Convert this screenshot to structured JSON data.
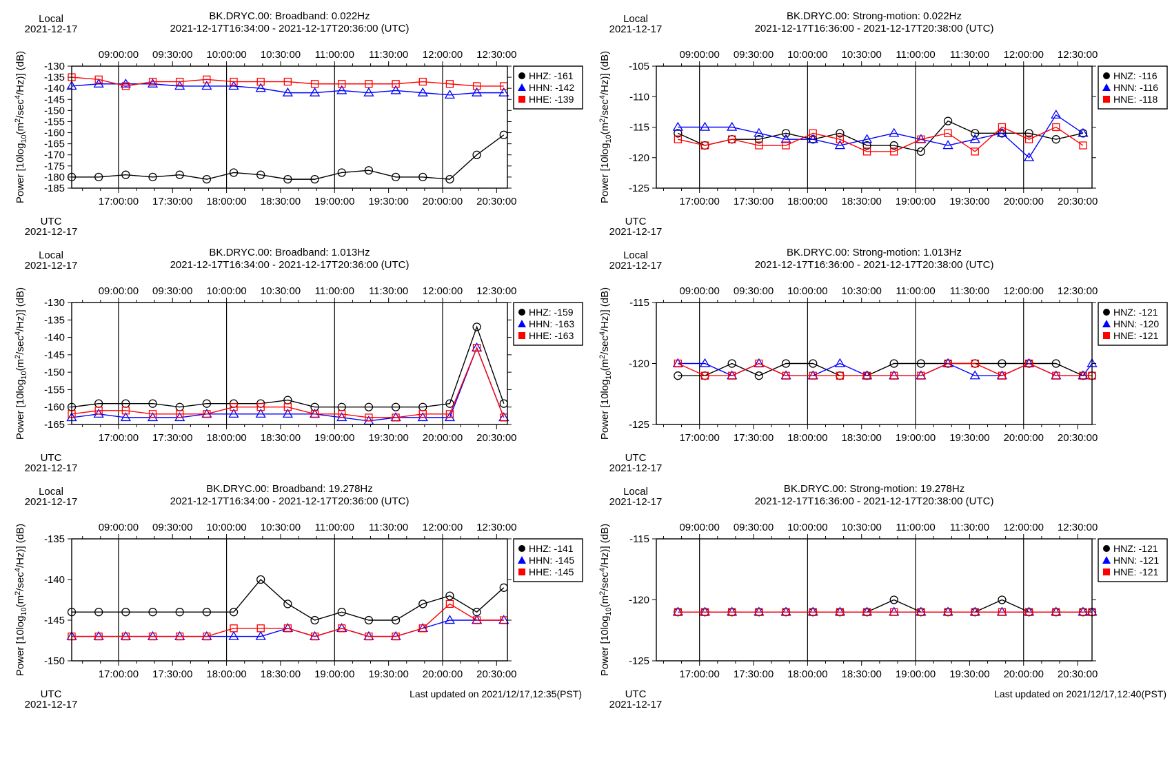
{
  "page": {
    "background": "#ffffff"
  },
  "style": {
    "series_colors": {
      "Z": "#000000",
      "N": "#0000ff",
      "E": "#ff0000"
    },
    "series_markers": {
      "Z": "circle",
      "N": "triangle",
      "E": "square"
    }
  },
  "chart_data": [
    {
      "type": "line",
      "title": "BK.DRYC.00: Broadband: 0.022Hz",
      "subtitle": "2021-12-17T16:34:00 - 2021-12-17T20:36:00 (UTC)",
      "local_label": "Local",
      "local_date": "2021-12-17",
      "utc_label": "UTC",
      "utc_date": "2021-12-17",
      "ylabel": "Power [10log10(m2/sec4/Hz)] (dB)",
      "ylim": [
        -185,
        -130
      ],
      "yticks": [
        -185,
        -180,
        -175,
        -170,
        -165,
        -160,
        -155,
        -150,
        -145,
        -140,
        -135,
        -130
      ],
      "xlim": [
        "16:34",
        "20:36"
      ],
      "xticks_utc": [
        "17:00:00",
        "17:30:00",
        "18:00:00",
        "18:30:00",
        "19:00:00",
        "19:30:00",
        "20:00:00",
        "20:30:00"
      ],
      "xticks_local": [
        "09:00:00",
        "09:30:00",
        "10:00:00",
        "10:30:00",
        "11:00:00",
        "11:30:00",
        "12:00:00",
        "12:30:00"
      ],
      "grid": "vertical lines at every hour",
      "legend_position": "top-right, outside plot",
      "x": [
        "16:34",
        "16:49",
        "17:04",
        "17:19",
        "17:34",
        "17:49",
        "18:04",
        "18:19",
        "18:34",
        "18:49",
        "19:04",
        "19:19",
        "19:34",
        "19:49",
        "20:04",
        "20:19",
        "20:34"
      ],
      "series": [
        {
          "name": "HHZ",
          "legend": "HHZ: -161",
          "color_key": "Z",
          "values": [
            -180,
            -180,
            -179,
            -180,
            -179,
            -181,
            -178,
            -179,
            -181,
            -181,
            -178,
            -177,
            -180,
            -180,
            -181,
            -170,
            -161
          ]
        },
        {
          "name": "HHN",
          "legend": "HHN: -142",
          "color_key": "N",
          "values": [
            -139,
            -138,
            -138,
            -138,
            -139,
            -139,
            -139,
            -140,
            -142,
            -142,
            -141,
            -142,
            -141,
            -142,
            -143,
            -142,
            -142
          ]
        },
        {
          "name": "HHE",
          "legend": "HHE: -139",
          "color_key": "E",
          "values": [
            -135,
            -136,
            -139,
            -137,
            -137,
            -136,
            -137,
            -137,
            -137,
            -138,
            -138,
            -138,
            -138,
            -137,
            -138,
            -139,
            -139
          ]
        }
      ]
    },
    {
      "type": "line",
      "title": "BK.DRYC.00: Strong-motion: 0.022Hz",
      "subtitle": "2021-12-17T16:36:00 - 2021-12-17T20:38:00 (UTC)",
      "local_label": "Local",
      "local_date": "2021-12-17",
      "utc_label": "UTC",
      "utc_date": "2021-12-17",
      "ylabel": "Power [10log10(m2/sec4/Hz)] (dB)",
      "ylim": [
        -125,
        -105
      ],
      "yticks": [
        -125,
        -120,
        -115,
        -110,
        -105
      ],
      "xlim": [
        "16:36",
        "20:38"
      ],
      "xticks_utc": [
        "17:00:00",
        "17:30:00",
        "18:00:00",
        "18:30:00",
        "19:00:00",
        "19:30:00",
        "20:00:00",
        "20:30:00"
      ],
      "xticks_local": [
        "09:00:00",
        "09:30:00",
        "10:00:00",
        "10:30:00",
        "11:00:00",
        "11:30:00",
        "12:00:00",
        "12:30:00"
      ],
      "grid": "vertical lines at every hour",
      "legend_position": "top-right, outside plot",
      "x": [
        "16:48",
        "17:03",
        "17:18",
        "17:33",
        "17:48",
        "18:03",
        "18:18",
        "18:33",
        "18:48",
        "19:03",
        "19:18",
        "19:33",
        "19:48",
        "20:03",
        "20:18",
        "20:33"
      ],
      "series": [
        {
          "name": "HNZ",
          "legend": "HNZ: -116",
          "color_key": "Z",
          "values": [
            -116,
            -118,
            -117,
            -117,
            -116,
            -117,
            -116,
            -118,
            -118,
            -119,
            -114,
            -116,
            -116,
            -116,
            -117,
            -116
          ]
        },
        {
          "name": "HNN",
          "legend": "HNN: -116",
          "color_key": "N",
          "values": [
            -115,
            -115,
            -115,
            -116,
            -117,
            -117,
            -118,
            -117,
            -116,
            -117,
            -118,
            -117,
            -116,
            -120,
            -113,
            -116
          ]
        },
        {
          "name": "HNE",
          "legend": "HNE: -118",
          "color_key": "E",
          "values": [
            -117,
            -118,
            -117,
            -118,
            -118,
            -116,
            -117,
            -119,
            -119,
            -117,
            -116,
            -119,
            -115,
            -117,
            -115,
            -118
          ]
        }
      ]
    },
    {
      "type": "line",
      "title": "BK.DRYC.00: Broadband: 1.013Hz",
      "subtitle": "2021-12-17T16:34:00 - 2021-12-17T20:36:00 (UTC)",
      "local_label": "Local",
      "local_date": "2021-12-17",
      "utc_label": "UTC",
      "utc_date": "2021-12-17",
      "ylabel": "Power [10log10(m2/sec4/Hz)] (dB)",
      "ylim": [
        -165,
        -130
      ],
      "yticks": [
        -165,
        -160,
        -155,
        -150,
        -145,
        -140,
        -135,
        -130
      ],
      "xlim": [
        "16:34",
        "20:36"
      ],
      "xticks_utc": [
        "17:00:00",
        "17:30:00",
        "18:00:00",
        "18:30:00",
        "19:00:00",
        "19:30:00",
        "20:00:00",
        "20:30:00"
      ],
      "xticks_local": [
        "09:00:00",
        "09:30:00",
        "10:00:00",
        "10:30:00",
        "11:00:00",
        "11:30:00",
        "12:00:00",
        "12:30:00"
      ],
      "grid": "vertical lines at every hour",
      "legend_position": "top-right, outside plot",
      "x": [
        "16:34",
        "16:49",
        "17:04",
        "17:19",
        "17:34",
        "17:49",
        "18:04",
        "18:19",
        "18:34",
        "18:49",
        "19:04",
        "19:19",
        "19:34",
        "19:49",
        "20:04",
        "20:19",
        "20:34"
      ],
      "series": [
        {
          "name": "HHZ",
          "legend": "HHZ: -159",
          "color_key": "Z",
          "values": [
            -160,
            -159,
            -159,
            -159,
            -160,
            -159,
            -159,
            -159,
            -158,
            -160,
            -160,
            -160,
            -160,
            -160,
            -159,
            -137,
            -159
          ]
        },
        {
          "name": "HHN",
          "legend": "HHN: -163",
          "color_key": "N",
          "values": [
            -163,
            -162,
            -163,
            -163,
            -163,
            -162,
            -162,
            -162,
            -162,
            -162,
            -163,
            -164,
            -163,
            -163,
            -163,
            -143,
            -163
          ]
        },
        {
          "name": "HHE",
          "legend": "HHE: -163",
          "color_key": "E",
          "values": [
            -162,
            -161,
            -161,
            -162,
            -162,
            -162,
            -160,
            -160,
            -160,
            -162,
            -162,
            -163,
            -163,
            -162,
            -162,
            -143,
            -163
          ]
        }
      ]
    },
    {
      "type": "line",
      "title": "BK.DRYC.00: Strong-motion: 1.013Hz",
      "subtitle": "2021-12-17T16:36:00 - 2021-12-17T20:38:00 (UTC)",
      "local_label": "Local",
      "local_date": "2021-12-17",
      "utc_label": "UTC",
      "utc_date": "2021-12-17",
      "ylabel": "Power [10log10(m2/sec4/Hz)] (dB)",
      "ylim": [
        -125,
        -115
      ],
      "yticks": [
        -125,
        -120,
        -115
      ],
      "xlim": [
        "16:36",
        "20:38"
      ],
      "xticks_utc": [
        "17:00:00",
        "17:30:00",
        "18:00:00",
        "18:30:00",
        "19:00:00",
        "19:30:00",
        "20:00:00",
        "20:30:00"
      ],
      "xticks_local": [
        "09:00:00",
        "09:30:00",
        "10:00:00",
        "10:30:00",
        "11:00:00",
        "11:30:00",
        "12:00:00",
        "12:30:00"
      ],
      "grid": "vertical lines at every hour",
      "legend_position": "top-right, outside plot",
      "x": [
        "16:48",
        "17:03",
        "17:18",
        "17:33",
        "17:48",
        "18:03",
        "18:18",
        "18:33",
        "18:48",
        "19:03",
        "19:18",
        "19:33",
        "19:48",
        "20:03",
        "20:18",
        "20:33",
        "20:38"
      ],
      "series": [
        {
          "name": "HNZ",
          "legend": "HNZ: -121",
          "color_key": "Z",
          "values": [
            -121,
            -121,
            -120,
            -121,
            -120,
            -120,
            -121,
            -121,
            -120,
            -120,
            -120,
            -120,
            -120,
            -120,
            -120,
            -121,
            -121
          ]
        },
        {
          "name": "HNN",
          "legend": "HNN: -120",
          "color_key": "N",
          "values": [
            -120,
            -120,
            -121,
            -120,
            -121,
            -121,
            -120,
            -121,
            -121,
            -121,
            -120,
            -121,
            -121,
            -120,
            -121,
            -121,
            -120
          ]
        },
        {
          "name": "HNE",
          "legend": "HNE: -121",
          "color_key": "E",
          "values": [
            -120,
            -121,
            -121,
            -120,
            -121,
            -121,
            -121,
            -121,
            -121,
            -121,
            -120,
            -120,
            -121,
            -120,
            -121,
            -121,
            -121
          ]
        }
      ]
    },
    {
      "type": "line",
      "title": "BK.DRYC.00: Broadband: 19.278Hz",
      "subtitle": "2021-12-17T16:34:00 - 2021-12-17T20:36:00 (UTC)",
      "local_label": "Local",
      "local_date": "2021-12-17",
      "utc_label": "UTC",
      "utc_date": "2021-12-17",
      "ylabel": "Power [10log10(m2/sec4/Hz)] (dB)",
      "ylim": [
        -150,
        -135
      ],
      "yticks": [
        -150,
        -145,
        -140,
        -135
      ],
      "xlim": [
        "16:34",
        "20:36"
      ],
      "xticks_utc": [
        "17:00:00",
        "17:30:00",
        "18:00:00",
        "18:30:00",
        "19:00:00",
        "19:30:00",
        "20:00:00",
        "20:30:00"
      ],
      "xticks_local": [
        "09:00:00",
        "09:30:00",
        "10:00:00",
        "10:30:00",
        "11:00:00",
        "11:30:00",
        "12:00:00",
        "12:30:00"
      ],
      "grid": "vertical lines at every hour",
      "legend_position": "top-right, outside plot",
      "footer": "Last updated on 2021/12/17,12:35(PST)",
      "x": [
        "16:34",
        "16:49",
        "17:04",
        "17:19",
        "17:34",
        "17:49",
        "18:04",
        "18:19",
        "18:34",
        "18:49",
        "19:04",
        "19:19",
        "19:34",
        "19:49",
        "20:04",
        "20:19",
        "20:34"
      ],
      "series": [
        {
          "name": "HHZ",
          "legend": "HHZ: -141",
          "color_key": "Z",
          "values": [
            -144,
            -144,
            -144,
            -144,
            -144,
            -144,
            -144,
            -140,
            -143,
            -145,
            -144,
            -145,
            -145,
            -143,
            -142,
            -144,
            -141
          ]
        },
        {
          "name": "HHN",
          "legend": "HHN: -145",
          "color_key": "N",
          "values": [
            -147,
            -147,
            -147,
            -147,
            -147,
            -147,
            -147,
            -147,
            -146,
            -147,
            -146,
            -147,
            -147,
            -146,
            -145,
            -145,
            -145
          ]
        },
        {
          "name": "HHE",
          "legend": "HHE: -145",
          "color_key": "E",
          "values": [
            -147,
            -147,
            -147,
            -147,
            -147,
            -147,
            -146,
            -146,
            -146,
            -147,
            -146,
            -147,
            -147,
            -146,
            -143,
            -145,
            -145
          ]
        }
      ]
    },
    {
      "type": "line",
      "title": "BK.DRYC.00: Strong-motion: 19.278Hz",
      "subtitle": "2021-12-17T16:36:00 - 2021-12-17T20:38:00 (UTC)",
      "local_label": "Local",
      "local_date": "2021-12-17",
      "utc_label": "UTC",
      "utc_date": "2021-12-17",
      "ylabel": "Power [10log10(m2/sec4/Hz)] (dB)",
      "ylim": [
        -125,
        -115
      ],
      "yticks": [
        -125,
        -120,
        -115
      ],
      "xlim": [
        "16:36",
        "20:38"
      ],
      "xticks_utc": [
        "17:00:00",
        "17:30:00",
        "18:00:00",
        "18:30:00",
        "19:00:00",
        "19:30:00",
        "20:00:00",
        "20:30:00"
      ],
      "xticks_local": [
        "09:00:00",
        "09:30:00",
        "10:00:00",
        "10:30:00",
        "11:00:00",
        "11:30:00",
        "12:00:00",
        "12:30:00"
      ],
      "grid": "vertical lines at every hour",
      "legend_position": "top-right, outside plot",
      "footer": "Last updated on 2021/12/17,12:40(PST)",
      "x": [
        "16:48",
        "17:03",
        "17:18",
        "17:33",
        "17:48",
        "18:03",
        "18:18",
        "18:33",
        "18:48",
        "19:03",
        "19:18",
        "19:33",
        "19:48",
        "20:03",
        "20:18",
        "20:33",
        "20:38"
      ],
      "series": [
        {
          "name": "HNZ",
          "legend": "HNZ: -121",
          "color_key": "Z",
          "values": [
            -121,
            -121,
            -121,
            -121,
            -121,
            -121,
            -121,
            -121,
            -120,
            -121,
            -121,
            -121,
            -120,
            -121,
            -121,
            -121,
            -121
          ]
        },
        {
          "name": "HNN",
          "legend": "HNN: -121",
          "color_key": "N",
          "values": [
            -121,
            -121,
            -121,
            -121,
            -121,
            -121,
            -121,
            -121,
            -121,
            -121,
            -121,
            -121,
            -121,
            -121,
            -121,
            -121,
            -121
          ]
        },
        {
          "name": "HNE",
          "legend": "HNE: -121",
          "color_key": "E",
          "values": [
            -121,
            -121,
            -121,
            -121,
            -121,
            -121,
            -121,
            -121,
            -121,
            -121,
            -121,
            -121,
            -121,
            -121,
            -121,
            -121,
            -121
          ]
        }
      ]
    }
  ]
}
